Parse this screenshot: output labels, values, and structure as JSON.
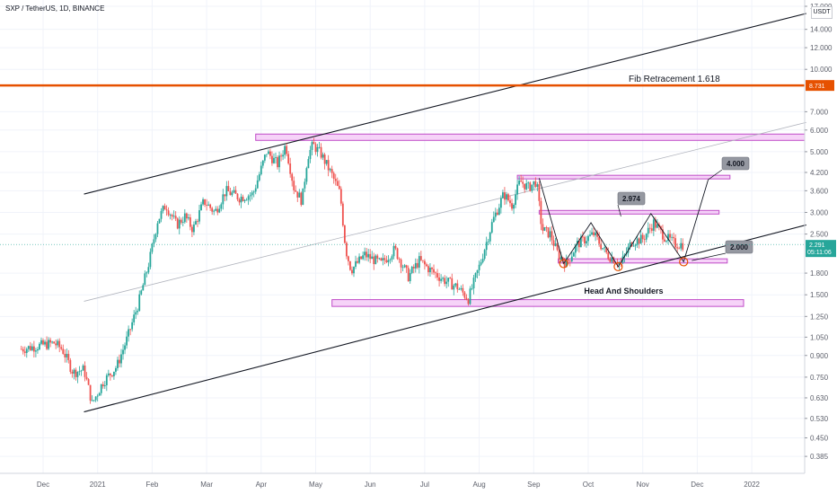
{
  "header": {
    "symbol": "SXP / TetherUS, 1D, BINANCE",
    "currency": "USDT"
  },
  "annotations": {
    "fib": "Fib Retracement 1.618",
    "fib_price": "8.731",
    "target_top": "4.000",
    "target_mid": "2.974",
    "target_low": "2.000",
    "pattern": "Head And Shoulders",
    "last_price": "2.291",
    "countdown": "05:11:06"
  },
  "colors": {
    "up": "#26a69a",
    "down": "#ef5350",
    "fib": "#e65100",
    "zone_fill": "#f3c4f5",
    "zone_stroke": "#c04cc8",
    "trend": "#131722",
    "last_price_bg": "#26a69a",
    "label_bg": "#9598a1"
  },
  "chart_data": {
    "type": "candlestick",
    "y_scale": "log",
    "ylim": [
      0.36,
      17.0
    ],
    "y_ticks": [
      {
        "value": 17.0,
        "label": "17.000"
      },
      {
        "value": 14.0,
        "label": "14.000"
      },
      {
        "value": 12.0,
        "label": "12.000"
      },
      {
        "value": 10.0,
        "label": "10.000"
      },
      {
        "value": 7.0,
        "label": "7.000"
      },
      {
        "value": 6.0,
        "label": "6.000"
      },
      {
        "value": 5.0,
        "label": "5.000"
      },
      {
        "value": 4.2,
        "label": "4.200"
      },
      {
        "value": 3.6,
        "label": "3.600"
      },
      {
        "value": 3.0,
        "label": "3.000"
      },
      {
        "value": 2.5,
        "label": "2.500"
      },
      {
        "value": 1.8,
        "label": "1.800"
      },
      {
        "value": 1.5,
        "label": "1.500"
      },
      {
        "value": 1.25,
        "label": "1.250"
      },
      {
        "value": 1.05,
        "label": "1.050"
      },
      {
        "value": 0.9,
        "label": "0.900"
      },
      {
        "value": 0.75,
        "label": "0.750"
      },
      {
        "value": 0.63,
        "label": "0.630"
      },
      {
        "value": 0.53,
        "label": "0.530"
      },
      {
        "value": 0.45,
        "label": "0.450"
      },
      {
        "value": 0.385,
        "label": "0.385"
      }
    ],
    "x_ticks": [
      {
        "month": 0,
        "label": "Dec"
      },
      {
        "month": 1,
        "label": "2021"
      },
      {
        "month": 2,
        "label": "Feb"
      },
      {
        "month": 3,
        "label": "Mar"
      },
      {
        "month": 4,
        "label": "Apr"
      },
      {
        "month": 5,
        "label": "May"
      },
      {
        "month": 6,
        "label": "Jun"
      },
      {
        "month": 7,
        "label": "Jul"
      },
      {
        "month": 8,
        "label": "Aug"
      },
      {
        "month": 9,
        "label": "Sep"
      },
      {
        "month": 10,
        "label": "Oct"
      },
      {
        "month": 11,
        "label": "Nov"
      },
      {
        "month": 12,
        "label": "Dec"
      },
      {
        "month": 13,
        "label": "2022"
      }
    ],
    "price_path": [
      [
        -0.4,
        0.95
      ],
      [
        0.2,
        1.0
      ],
      [
        0.35,
        0.95
      ],
      [
        0.55,
        0.78
      ],
      [
        0.75,
        0.8
      ],
      [
        0.9,
        0.6
      ],
      [
        1.1,
        0.72
      ],
      [
        1.35,
        0.82
      ],
      [
        1.55,
        1.05
      ],
      [
        1.75,
        1.4
      ],
      [
        1.95,
        2.0
      ],
      [
        2.1,
        2.8
      ],
      [
        2.25,
        3.2
      ],
      [
        2.45,
        2.7
      ],
      [
        2.6,
        2.9
      ],
      [
        2.75,
        2.6
      ],
      [
        2.95,
        3.3
      ],
      [
        3.15,
        3.0
      ],
      [
        3.35,
        3.6
      ],
      [
        3.6,
        3.4
      ],
      [
        3.85,
        3.5
      ],
      [
        4.1,
        5.0
      ],
      [
        4.3,
        4.5
      ],
      [
        4.45,
        5.3
      ],
      [
        4.6,
        3.7
      ],
      [
        4.75,
        3.3
      ],
      [
        4.85,
        4.8
      ],
      [
        4.95,
        5.3
      ],
      [
        5.1,
        4.9
      ],
      [
        5.3,
        4.1
      ],
      [
        5.45,
        3.5
      ],
      [
        5.55,
        2.2
      ],
      [
        5.65,
        1.85
      ],
      [
        5.9,
        2.1
      ],
      [
        6.2,
        1.95
      ],
      [
        6.45,
        2.2
      ],
      [
        6.7,
        1.75
      ],
      [
        6.9,
        2.0
      ],
      [
        7.1,
        1.85
      ],
      [
        7.35,
        1.7
      ],
      [
        7.6,
        1.6
      ],
      [
        7.8,
        1.45
      ],
      [
        8.0,
        1.9
      ],
      [
        8.25,
        2.8
      ],
      [
        8.45,
        3.5
      ],
      [
        8.6,
        3.2
      ],
      [
        8.75,
        3.9
      ],
      [
        8.9,
        3.7
      ],
      [
        9.05,
        3.9
      ],
      [
        9.15,
        2.6
      ],
      [
        9.3,
        2.5
      ],
      [
        9.45,
        2.1
      ],
      [
        9.6,
        1.95
      ],
      [
        9.8,
        2.3
      ],
      [
        10.1,
        2.5
      ],
      [
        10.35,
        2.1
      ],
      [
        10.6,
        1.95
      ],
      [
        10.8,
        2.35
      ],
      [
        11.0,
        2.4
      ],
      [
        11.2,
        2.75
      ],
      [
        11.4,
        2.45
      ],
      [
        11.6,
        2.3
      ],
      [
        11.75,
        2.29
      ]
    ],
    "fib_level": 8.731,
    "horizontal_zones": [
      {
        "x_from": 3.9,
        "x_to": 14.0,
        "y_low": 5.5,
        "y_high": 5.8
      },
      {
        "x_from": 8.7,
        "x_to": 12.6,
        "y_low": 4.0,
        "y_high": 4.1
      },
      {
        "x_from": 9.1,
        "x_to": 12.4,
        "y_low": 2.96,
        "y_high": 3.05
      },
      {
        "x_from": 9.45,
        "x_to": 12.55,
        "y_low": 1.96,
        "y_high": 2.03
      },
      {
        "x_from": 5.3,
        "x_to": 12.85,
        "y_low": 1.36,
        "y_high": 1.44
      }
    ],
    "trend_lines": [
      {
        "from": [
          0.75,
          0.56
        ],
        "to": [
          14.0,
          2.7
        ]
      },
      {
        "from": [
          0.75,
          3.5
        ],
        "to": [
          14.0,
          16.0
        ]
      },
      {
        "from": [
          0.75,
          1.42
        ],
        "to": [
          14.0,
          6.4
        ]
      }
    ],
    "projection": [
      [
        9.1,
        4.0
      ],
      [
        9.55,
        1.95
      ],
      [
        10.05,
        2.75
      ],
      [
        10.55,
        1.9
      ],
      [
        11.15,
        2.97
      ],
      [
        11.75,
        1.98
      ],
      [
        12.2,
        3.95
      ]
    ],
    "shoulder_marks": [
      [
        9.55,
        1.95
      ],
      [
        10.55,
        1.9
      ],
      [
        11.75,
        1.98
      ]
    ]
  }
}
